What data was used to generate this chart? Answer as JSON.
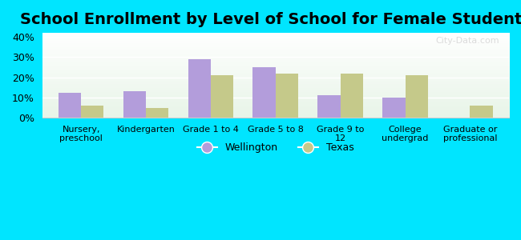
{
  "title": "School Enrollment by Level of School for Female Students",
  "categories": [
    "Nursery,\npreschool",
    "Kindergarten",
    "Grade 1 to 4",
    "Grade 5 to 8",
    "Grade 9 to\n12",
    "College\nundergrad",
    "Graduate or\nprofessional"
  ],
  "wellington": [
    12.5,
    13.0,
    29.0,
    25.0,
    11.0,
    10.0,
    0.0
  ],
  "texas": [
    6.0,
    5.0,
    21.0,
    22.0,
    22.0,
    21.0,
    6.0
  ],
  "wellington_color": "#b39ddb",
  "texas_color": "#c5c98a",
  "background_color": "#00e5ff",
  "ylim": [
    0,
    42
  ],
  "yticks": [
    0,
    10,
    20,
    30,
    40
  ],
  "ytick_labels": [
    "0%",
    "10%",
    "20%",
    "30%",
    "40%"
  ],
  "title_fontsize": 14,
  "legend_labels": [
    "Wellington",
    "Texas"
  ],
  "bar_width": 0.35
}
